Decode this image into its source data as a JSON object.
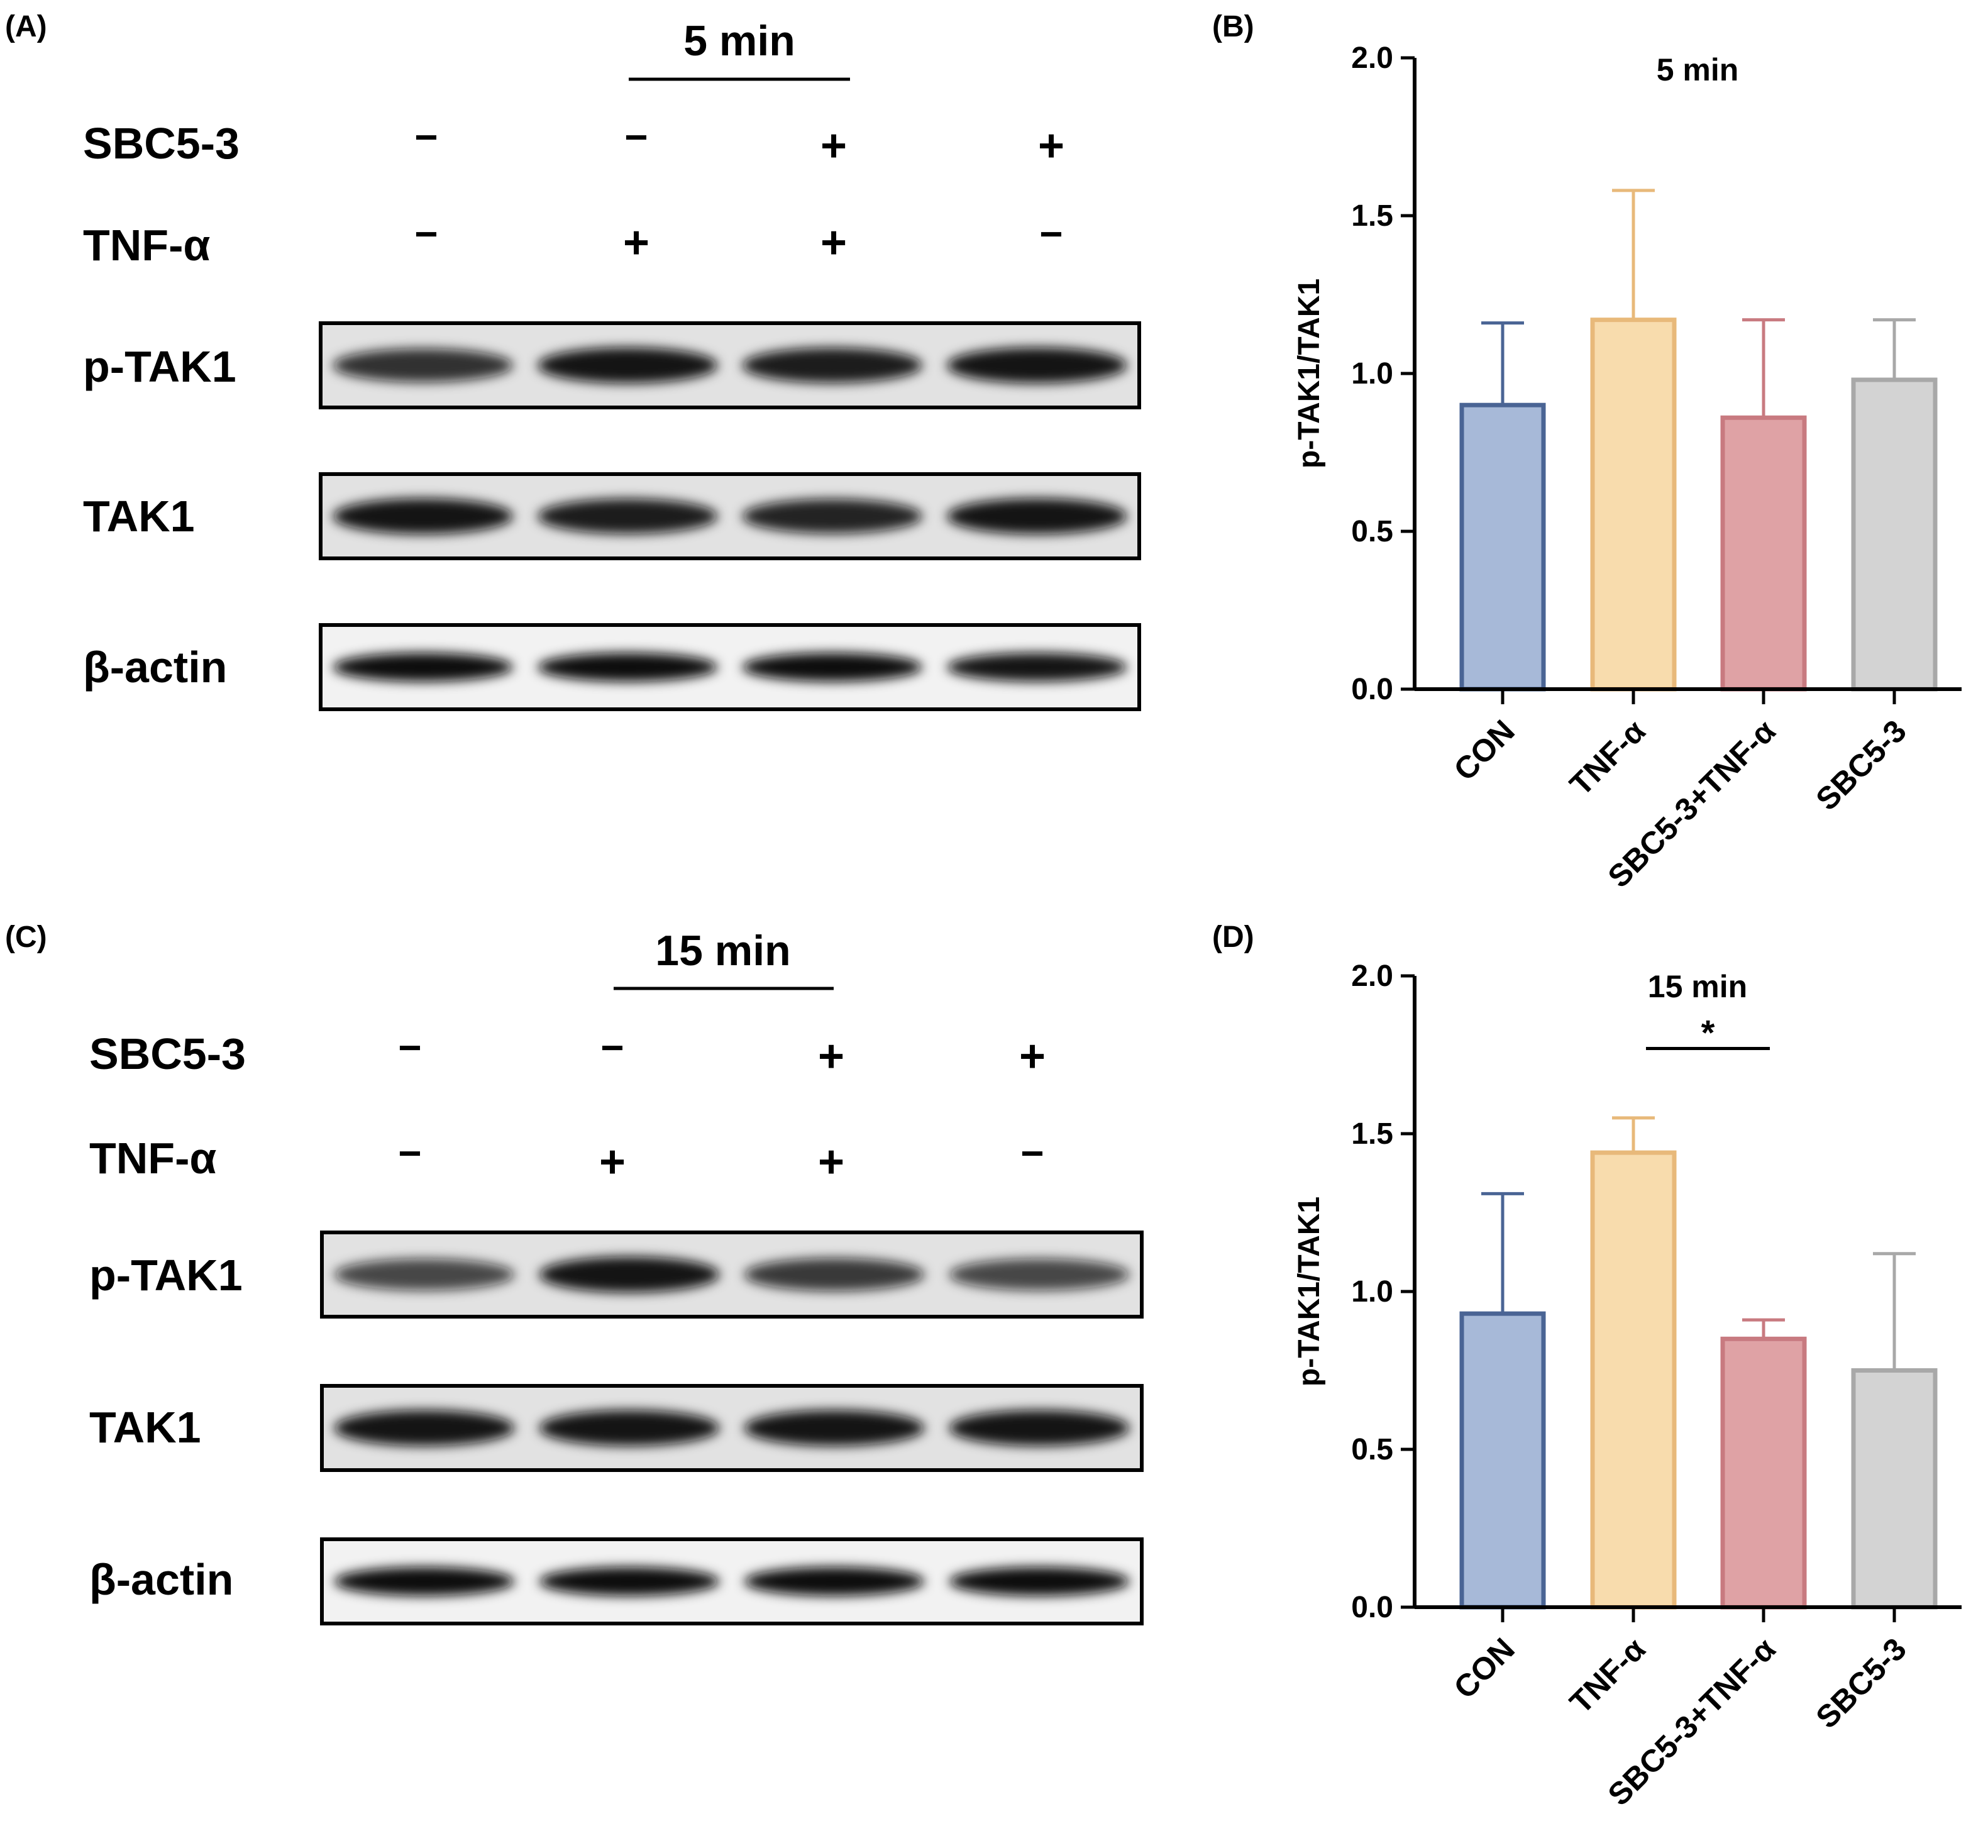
{
  "colors": {
    "bar_fills": [
      "#a7b9d8",
      "#f8dcad",
      "#dfa2a5",
      "#d3d3d3"
    ],
    "bar_strokes": [
      "#4a6494",
      "#e8b97a",
      "#c87a80",
      "#a8a8a8"
    ],
    "band": "#111111",
    "blot_bg": "#e2e2e2",
    "blot_bg_actin": "#f2f2f2"
  },
  "panels": [
    {
      "label": "(A)",
      "time": "5 min",
      "treatments": [
        {
          "name": "SBC5-3",
          "signs": [
            "−",
            "−",
            "+",
            "+"
          ]
        },
        {
          "name": "TNF-α",
          "signs": [
            "−",
            "+",
            "+",
            "−"
          ]
        }
      ],
      "blots": [
        {
          "name": "p-TAK1",
          "band_strengths": [
            0.75,
            0.95,
            0.9,
            0.95
          ]
        },
        {
          "name": "TAK1",
          "band_strengths": [
            0.95,
            0.9,
            0.85,
            0.95
          ]
        },
        {
          "name": "β-actin",
          "band_strengths": [
            1.0,
            1.0,
            1.0,
            0.95
          ]
        }
      ]
    },
    {
      "label": "(C)",
      "time": "15 min",
      "treatments": [
        {
          "name": "SBC5-3",
          "signs": [
            "−",
            "−",
            "+",
            "+"
          ]
        },
        {
          "name": "TNF-α",
          "signs": [
            "−",
            "+",
            "+",
            "−"
          ]
        }
      ],
      "blots": [
        {
          "name": "p-TAK1",
          "band_strengths": [
            0.6,
            0.95,
            0.7,
            0.6
          ]
        },
        {
          "name": "TAK1",
          "band_strengths": [
            0.95,
            0.95,
            0.95,
            0.95
          ]
        },
        {
          "name": "β-actin",
          "band_strengths": [
            1.0,
            1.0,
            1.0,
            1.0
          ]
        }
      ]
    }
  ],
  "chart_data": [
    {
      "panel_label": "(B)",
      "type": "bar",
      "title": "5 min",
      "xlabel": "",
      "ylabel": "p-TAK1/TAK1",
      "ylim": [
        0,
        2.0
      ],
      "yticks": [
        "0.0",
        "0.5",
        "1.0",
        "1.5",
        "2.0"
      ],
      "categories": [
        "CON",
        "TNF-α",
        "SBC5-3+TNF-α",
        "SBC5-3"
      ],
      "values": [
        0.9,
        1.17,
        0.86,
        0.98
      ],
      "error_upper": [
        1.16,
        1.58,
        1.17,
        1.17
      ],
      "significance": null
    },
    {
      "panel_label": "(D)",
      "type": "bar",
      "title": "15 min",
      "xlabel": "",
      "ylabel": "p-TAK1/TAK1",
      "ylim": [
        0,
        2.0
      ],
      "yticks": [
        "0.0",
        "0.5",
        "1.0",
        "1.5",
        "2.0"
      ],
      "categories": [
        "CON",
        "TNF-α",
        "SBC5-3+TNF-α",
        "SBC5-3"
      ],
      "values": [
        0.93,
        1.44,
        0.85,
        0.75
      ],
      "error_upper": [
        1.31,
        1.55,
        0.91,
        1.12
      ],
      "significance": {
        "from": 1,
        "to": 2,
        "label": "*"
      }
    }
  ]
}
